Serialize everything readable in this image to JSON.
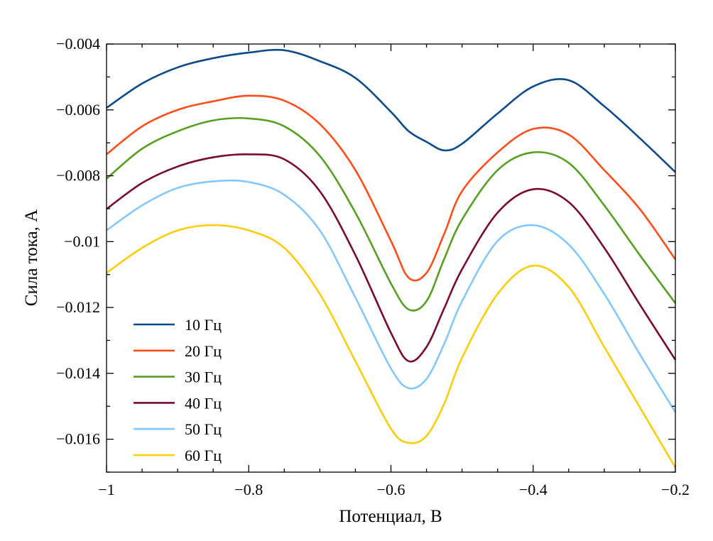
{
  "chart_data": {
    "type": "line",
    "title": "",
    "xlabel": "Потенциал, В",
    "ylabel": "Сила тока, А",
    "xlim": [
      -1,
      -0.2
    ],
    "ylim": [
      -0.017,
      -0.004
    ],
    "xticks": [
      -1,
      -0.8,
      -0.6,
      -0.4,
      -0.2
    ],
    "xtick_labels": [
      "−1",
      "−0.8",
      "−0.6",
      "−0.4",
      "−0.2"
    ],
    "yticks": [
      -0.004,
      -0.006,
      -0.008,
      -0.01,
      -0.012,
      -0.014,
      -0.016
    ],
    "ytick_labels": [
      "−0.004",
      "−0.006",
      "−0.008",
      "−0.01",
      "−0.012",
      "−0.014",
      "−0.016"
    ],
    "grid": false,
    "legend_position": "bottom-left",
    "x": [
      -1,
      -0.95,
      -0.9,
      -0.85,
      -0.8,
      -0.75,
      -0.7,
      -0.65,
      -0.6,
      -0.575,
      -0.55,
      -0.525,
      -0.5,
      -0.45,
      -0.4,
      -0.35,
      -0.3,
      -0.25,
      -0.2
    ],
    "series": [
      {
        "name": "10 Гц",
        "color": "#0b4a8b",
        "values": [
          -0.00594,
          -0.0052,
          -0.00471,
          -0.00443,
          -0.00426,
          -0.00419,
          -0.00452,
          -0.00503,
          -0.00606,
          -0.00665,
          -0.00697,
          -0.00723,
          -0.00703,
          -0.00611,
          -0.00529,
          -0.0051,
          -0.00589,
          -0.00686,
          -0.00789
        ]
      },
      {
        "name": "20 Гц",
        "color": "#ff4d1a",
        "values": [
          -0.00735,
          -0.0065,
          -0.006,
          -0.00574,
          -0.00557,
          -0.00572,
          -0.00643,
          -0.00783,
          -0.00998,
          -0.0111,
          -0.01095,
          -0.00976,
          -0.00847,
          -0.00729,
          -0.00658,
          -0.00675,
          -0.00783,
          -0.00901,
          -0.01054
        ]
      },
      {
        "name": "30 Гц",
        "color": "#55a020",
        "values": [
          -0.00809,
          -0.00718,
          -0.00665,
          -0.00632,
          -0.00626,
          -0.0065,
          -0.0074,
          -0.00912,
          -0.01127,
          -0.01206,
          -0.01181,
          -0.01052,
          -0.00933,
          -0.00783,
          -0.00729,
          -0.00761,
          -0.0089,
          -0.01041,
          -0.01187
        ]
      },
      {
        "name": "40 Гц",
        "color": "#7a0a2e",
        "values": [
          -0.00901,
          -0.00822,
          -0.00772,
          -0.00744,
          -0.00735,
          -0.0075,
          -0.00847,
          -0.01041,
          -0.01277,
          -0.01363,
          -0.0132,
          -0.01202,
          -0.01084,
          -0.00912,
          -0.00841,
          -0.0088,
          -0.01019,
          -0.01191,
          -0.01359
        ]
      },
      {
        "name": "50 Гц",
        "color": "#82c8ff",
        "values": [
          -0.00966,
          -0.0089,
          -0.00837,
          -0.00817,
          -0.00819,
          -0.00858,
          -0.00966,
          -0.0117,
          -0.01385,
          -0.01445,
          -0.01417,
          -0.0131,
          -0.01181,
          -0.00998,
          -0.0095,
          -0.01009,
          -0.01159,
          -0.01342,
          -0.01518
        ]
      },
      {
        "name": "60 Гц",
        "color": "#ffcc0a",
        "values": [
          -0.01095,
          -0.01019,
          -0.00966,
          -0.0095,
          -0.00966,
          -0.01019,
          -0.01159,
          -0.01363,
          -0.01568,
          -0.01611,
          -0.0159,
          -0.01492,
          -0.01353,
          -0.01159,
          -0.01073,
          -0.01138,
          -0.0132,
          -0.01503,
          -0.01686
        ]
      }
    ]
  }
}
